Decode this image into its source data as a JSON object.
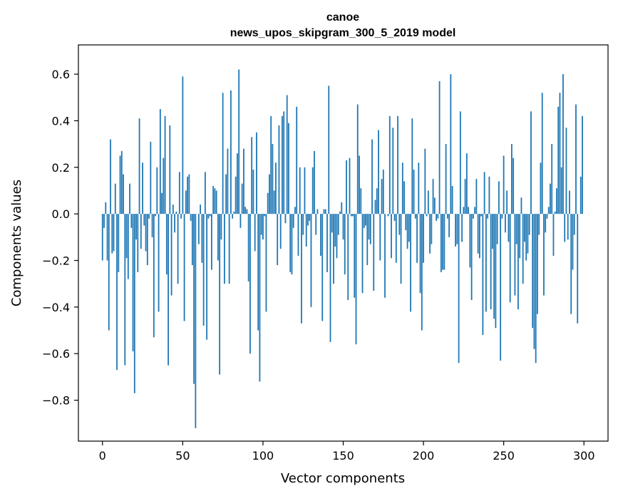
{
  "chart_data": {
    "type": "bar",
    "title": "canoe",
    "subtitle": "news_upos_skipgram_300_5_2019 model",
    "xlabel": "Vector components",
    "ylabel": "Components values",
    "xlim": [
      -15,
      315
    ],
    "ylim": [
      -0.9757,
      0.7257
    ],
    "xticks": [
      0,
      50,
      100,
      150,
      200,
      250,
      300
    ],
    "yticks": [
      -0.8,
      -0.6,
      -0.4,
      -0.2,
      0.0,
      0.2,
      0.4,
      0.6
    ],
    "ytick_labels": [
      "−0.8",
      "−0.6",
      "−0.4",
      "−0.2",
      "0.0",
      "0.2",
      "0.4",
      "0.6"
    ],
    "bar_color": "#1f77b4",
    "grid": false,
    "values": [
      -0.2,
      -0.06,
      0.05,
      -0.2,
      -0.5,
      0.32,
      -0.17,
      -0.16,
      0.13,
      -0.67,
      -0.25,
      0.25,
      0.27,
      0.17,
      -0.65,
      -0.19,
      -0.28,
      0.13,
      -0.06,
      -0.59,
      -0.77,
      -0.11,
      -0.25,
      0.41,
      -0.15,
      0.22,
      -0.05,
      -0.16,
      -0.22,
      -0.02,
      0.31,
      -0.1,
      -0.53,
      -0.01,
      0.2,
      -0.42,
      0.45,
      0.09,
      0.24,
      0.42,
      -0.26,
      -0.65,
      0.38,
      -0.35,
      0.04,
      -0.08,
      0.01,
      -0.3,
      0.18,
      -0.02,
      0.59,
      -0.46,
      0.1,
      0.16,
      0.17,
      -0.03,
      -0.22,
      -0.73,
      -0.92,
      0.0,
      -0.13,
      0.04,
      -0.21,
      -0.48,
      0.18,
      -0.54,
      -0.02,
      -0.01,
      -0.24,
      0.12,
      0.11,
      0.1,
      -0.2,
      -0.69,
      -0.11,
      0.52,
      -0.3,
      0.17,
      0.28,
      -0.3,
      0.53,
      -0.02,
      0.01,
      0.16,
      0.26,
      0.62,
      -0.06,
      0.13,
      0.28,
      0.03,
      0.02,
      -0.29,
      -0.6,
      0.33,
      0.19,
      -0.16,
      0.35,
      -0.5,
      -0.72,
      -0.09,
      -0.11,
      -0.01,
      -0.42,
      0.09,
      0.17,
      0.42,
      0.3,
      0.1,
      0.22,
      -0.22,
      0.38,
      -0.15,
      0.42,
      0.44,
      -0.04,
      0.51,
      0.39,
      -0.25,
      -0.26,
      -0.06,
      0.03,
      0.46,
      -0.18,
      0.2,
      -0.47,
      -0.09,
      0.2,
      -0.14,
      -0.05,
      -0.03,
      -0.4,
      0.2,
      0.27,
      -0.09,
      0.02,
      0.0,
      -0.18,
      -0.46,
      0.02,
      0.02,
      -0.25,
      0.55,
      -0.55,
      -0.08,
      -0.3,
      -0.14,
      -0.19,
      -0.09,
      0.01,
      0.05,
      -0.11,
      -0.26,
      0.23,
      -0.37,
      0.24,
      -0.01,
      -0.01,
      -0.36,
      -0.56,
      0.47,
      0.25,
      0.11,
      -0.34,
      -0.06,
      -0.05,
      -0.22,
      -0.11,
      -0.13,
      0.32,
      -0.33,
      0.06,
      0.11,
      0.36,
      -0.2,
      0.15,
      0.19,
      -0.36,
      0.0,
      -0.01,
      0.42,
      -0.19,
      0.37,
      -0.03,
      -0.21,
      0.42,
      -0.09,
      -0.3,
      0.22,
      0.14,
      -0.07,
      -0.15,
      -0.12,
      -0.42,
      0.41,
      0.19,
      -0.02,
      -0.21,
      0.22,
      -0.34,
      -0.5,
      -0.21,
      0.28,
      -0.01,
      0.1,
      -0.17,
      -0.13,
      0.15,
      0.07,
      -0.03,
      -0.02,
      0.57,
      -0.25,
      -0.24,
      -0.24,
      0.3,
      -0.02,
      -0.1,
      0.6,
      0.12,
      0.0,
      -0.14,
      -0.13,
      -0.64,
      0.44,
      -0.12,
      0.03,
      0.15,
      0.26,
      0.03,
      -0.23,
      -0.37,
      -0.02,
      0.03,
      0.15,
      -0.17,
      -0.19,
      -0.01,
      -0.52,
      0.18,
      -0.42,
      -0.02,
      0.16,
      -0.41,
      -0.15,
      -0.45,
      -0.49,
      -0.13,
      0.14,
      -0.63,
      -0.02,
      0.25,
      -0.08,
      0.1,
      -0.12,
      -0.38,
      0.3,
      0.24,
      -0.35,
      -0.13,
      -0.41,
      -0.19,
      0.07,
      -0.3,
      -0.12,
      -0.2,
      -0.17,
      -0.09,
      0.44,
      -0.49,
      -0.58,
      -0.64,
      -0.43,
      -0.09,
      0.22,
      0.52,
      -0.35,
      -0.08,
      -0.02,
      0.03,
      0.13,
      0.3,
      -0.18,
      0.01,
      0.11,
      0.46,
      0.52,
      0.2,
      0.6,
      -0.12,
      0.37,
      -0.11,
      0.1,
      -0.43,
      -0.24,
      -0.09,
      0.47,
      -0.47,
      0.0,
      0.16,
      0.42
    ]
  }
}
